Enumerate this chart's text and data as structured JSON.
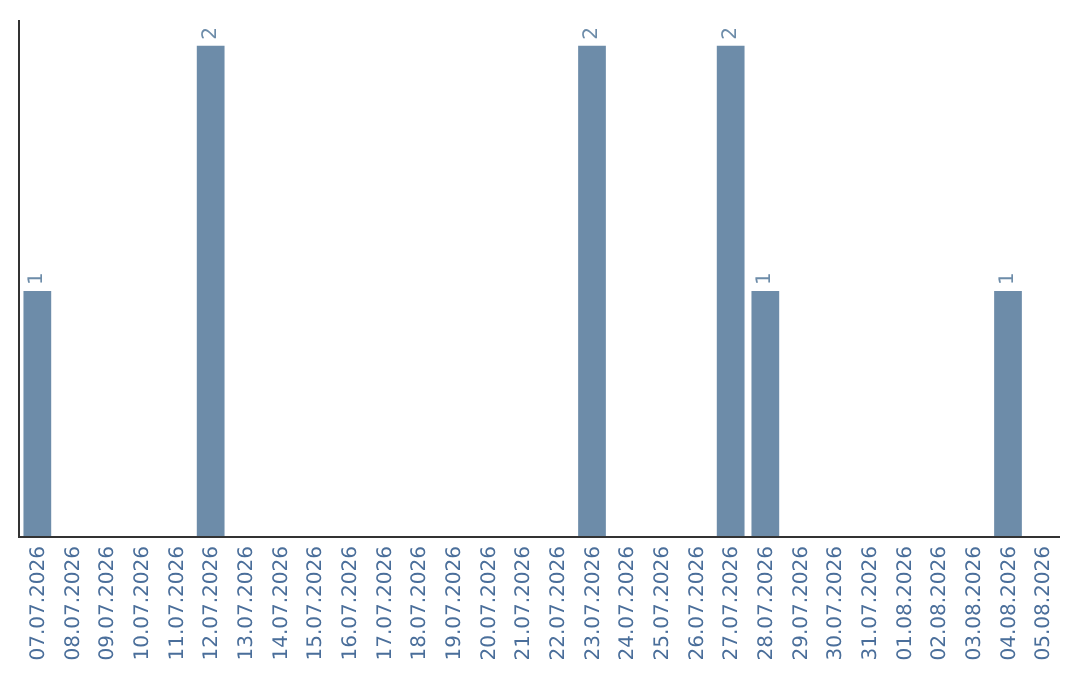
{
  "chart_data": {
    "type": "bar",
    "categories": [
      "07.07.2026",
      "08.07.2026",
      "09.07.2026",
      "10.07.2026",
      "11.07.2026",
      "12.07.2026",
      "13.07.2026",
      "14.07.2026",
      "15.07.2026",
      "16.07.2026",
      "17.07.2026",
      "18.07.2026",
      "19.07.2026",
      "20.07.2026",
      "21.07.2026",
      "22.07.2026",
      "23.07.2026",
      "24.07.2026",
      "25.07.2026",
      "26.07.2026",
      "27.07.2026",
      "28.07.2026",
      "29.07.2026",
      "30.07.2026",
      "31.07.2026",
      "01.08.2026",
      "02.08.2026",
      "03.08.2026",
      "04.08.2026",
      "05.08.2026"
    ],
    "values": [
      1,
      0,
      0,
      0,
      0,
      2,
      0,
      0,
      0,
      0,
      0,
      0,
      0,
      0,
      0,
      0,
      2,
      0,
      0,
      0,
      2,
      1,
      0,
      0,
      0,
      0,
      0,
      0,
      1,
      0
    ],
    "value_labels": [
      "1",
      null,
      null,
      null,
      null,
      "2",
      null,
      null,
      null,
      null,
      null,
      null,
      null,
      null,
      null,
      null,
      "2",
      null,
      null,
      null,
      "2",
      "1",
      null,
      null,
      null,
      null,
      null,
      null,
      "1",
      null
    ],
    "color": "#6d8ca9"
  }
}
